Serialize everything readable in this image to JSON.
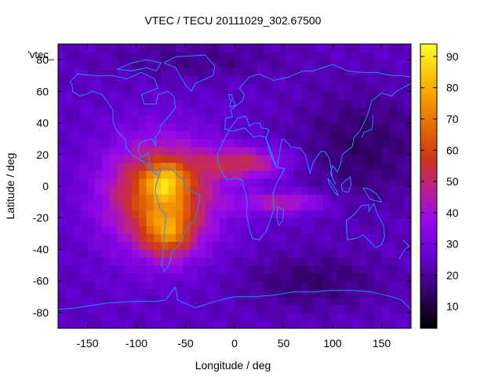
{
  "chart_data": {
    "type": "heatmap",
    "title": "VTEC / TECU 20111029_302.67500",
    "xlabel": "Longitude / deg",
    "ylabel": "Latitude / deg",
    "series_label": "'vtec_",
    "xlim": [
      -180,
      180
    ],
    "ylim": [
      -90,
      90
    ],
    "xticks": [
      -150,
      -100,
      -50,
      0,
      50,
      100,
      150
    ],
    "yticks": [
      -80,
      -60,
      -40,
      -20,
      0,
      20,
      40,
      60,
      80
    ],
    "colorbar": {
      "min": 3,
      "max": 94,
      "ticks": [
        10,
        20,
        30,
        40,
        50,
        60,
        70,
        80,
        90
      ]
    },
    "grid": {
      "lon_step": 7.5,
      "lat_step": 5
    },
    "background_level": 24,
    "features": [
      {
        "name": "south-american-anomaly",
        "lon": -75,
        "lat": -5,
        "sigma_lon": 40,
        "sigma_lat": 24,
        "amplitude": 44
      },
      {
        "name": "equatorial-crest-north",
        "lon": -70,
        "lat": 3,
        "sigma_lon": 14,
        "sigma_lat": 8,
        "amplitude": 24
      },
      {
        "name": "equatorial-crest-south",
        "lon": -68,
        "lat": -30,
        "sigma_lon": 18,
        "sigma_lat": 11,
        "amplitude": 28
      },
      {
        "name": "atlantic-band",
        "lon": 10,
        "lat": 15,
        "sigma_lon": 30,
        "sigma_lat": 7,
        "amplitude": 26
      },
      {
        "name": "indian-ocean-band",
        "lon": 50,
        "lat": -10,
        "sigma_lon": 30,
        "sigma_lat": 5,
        "amplitude": 22
      },
      {
        "name": "asian-trough",
        "lon": 130,
        "lat": 25,
        "sigma_lon": 45,
        "sigma_lat": 25,
        "amplitude": -10
      },
      {
        "name": "southern-trough",
        "lon": 80,
        "lat": -60,
        "sigma_lon": 50,
        "sigma_lat": 12,
        "amplitude": -9
      },
      {
        "name": "polar-low",
        "lon": -40,
        "lat": 80,
        "sigma_lon": 60,
        "sigma_lat": 8,
        "amplitude": -6
      }
    ],
    "coastlines": [
      {
        "name": "north-america",
        "points": [
          [
            -168,
            66
          ],
          [
            -160,
            71
          ],
          [
            -140,
            70
          ],
          [
            -125,
            70
          ],
          [
            -110,
            68
          ],
          [
            -95,
            72
          ],
          [
            -82,
            68
          ],
          [
            -78,
            62
          ],
          [
            -95,
            58
          ],
          [
            -92,
            52
          ],
          [
            -80,
            52
          ],
          [
            -78,
            58
          ],
          [
            -68,
            60
          ],
          [
            -62,
            57
          ],
          [
            -60,
            50
          ],
          [
            -66,
            45
          ],
          [
            -70,
            42
          ],
          [
            -76,
            38
          ],
          [
            -76,
            35
          ],
          [
            -81,
            31
          ],
          [
            -80,
            25
          ],
          [
            -84,
            30
          ],
          [
            -90,
            29
          ],
          [
            -97,
            27
          ],
          [
            -98,
            22
          ],
          [
            -95,
            18
          ],
          [
            -88,
            21
          ],
          [
            -87,
            16
          ],
          [
            -83,
            10
          ],
          [
            -79,
            9
          ],
          [
            -80,
            7
          ],
          [
            -85,
            10
          ],
          [
            -92,
            15
          ],
          [
            -105,
            20
          ],
          [
            -110,
            24
          ],
          [
            -112,
            30
          ],
          [
            -117,
            33
          ],
          [
            -121,
            36
          ],
          [
            -124,
            41
          ],
          [
            -124,
            48
          ],
          [
            -130,
            54
          ],
          [
            -135,
            58
          ],
          [
            -145,
            60
          ],
          [
            -152,
            58
          ],
          [
            -158,
            57
          ],
          [
            -165,
            60
          ],
          [
            -166,
            65
          ],
          [
            -168,
            66
          ]
        ]
      },
      {
        "name": "south-america",
        "points": [
          [
            -77,
            8
          ],
          [
            -73,
            12
          ],
          [
            -65,
            11
          ],
          [
            -60,
            8
          ],
          [
            -52,
            4
          ],
          [
            -50,
            0
          ],
          [
            -44,
            -3
          ],
          [
            -35,
            -6
          ],
          [
            -37,
            -12
          ],
          [
            -39,
            -18
          ],
          [
            -41,
            -22
          ],
          [
            -48,
            -26
          ],
          [
            -53,
            -34
          ],
          [
            -58,
            -38
          ],
          [
            -64,
            -42
          ],
          [
            -66,
            -48
          ],
          [
            -69,
            -52
          ],
          [
            -72,
            -54
          ],
          [
            -74,
            -50
          ],
          [
            -73,
            -42
          ],
          [
            -72,
            -32
          ],
          [
            -71,
            -25
          ],
          [
            -70,
            -18
          ],
          [
            -76,
            -14
          ],
          [
            -79,
            -8
          ],
          [
            -81,
            -3
          ],
          [
            -80,
            1
          ],
          [
            -78,
            4
          ],
          [
            -77,
            8
          ]
        ]
      },
      {
        "name": "greenland",
        "points": [
          [
            -72,
            78
          ],
          [
            -60,
            82
          ],
          [
            -30,
            83
          ],
          [
            -20,
            76
          ],
          [
            -22,
            70
          ],
          [
            -40,
            65
          ],
          [
            -44,
            60
          ],
          [
            -50,
            64
          ],
          [
            -54,
            68
          ],
          [
            -60,
            75
          ],
          [
            -72,
            78
          ]
        ]
      },
      {
        "name": "eurasia-north",
        "points": [
          [
            -10,
            36
          ],
          [
            -9,
            43
          ],
          [
            -2,
            44
          ],
          [
            -4,
            48
          ],
          [
            2,
            51
          ],
          [
            8,
            54
          ],
          [
            10,
            58
          ],
          [
            5,
            62
          ],
          [
            15,
            69
          ],
          [
            25,
            71
          ],
          [
            40,
            67
          ],
          [
            55,
            69
          ],
          [
            70,
            73
          ],
          [
            80,
            73
          ],
          [
            100,
            77
          ],
          [
            115,
            73
          ],
          [
            130,
            72
          ],
          [
            145,
            72
          ],
          [
            160,
            70
          ],
          [
            170,
            70
          ],
          [
            180,
            69
          ]
        ]
      },
      {
        "name": "eurasia-south",
        "points": [
          [
            180,
            65
          ],
          [
            165,
            60
          ],
          [
            160,
            57
          ],
          [
            150,
            59
          ],
          [
            140,
            54
          ],
          [
            135,
            44
          ],
          [
            128,
            35
          ],
          [
            122,
            31
          ],
          [
            120,
            25
          ],
          [
            110,
            20
          ],
          [
            108,
            14
          ],
          [
            105,
            9
          ],
          [
            100,
            13
          ],
          [
            98,
            8
          ],
          [
            103,
            1
          ],
          [
            100,
            5
          ],
          [
            97,
            17
          ],
          [
            92,
            22
          ],
          [
            88,
            22
          ],
          [
            80,
            15
          ],
          [
            77,
            8
          ],
          [
            72,
            20
          ],
          [
            67,
            24
          ],
          [
            57,
            25
          ],
          [
            56,
            26
          ],
          [
            50,
            30
          ],
          [
            48,
            29
          ],
          [
            44,
            13
          ],
          [
            43,
            12
          ],
          [
            38,
            18
          ],
          [
            32,
            30
          ],
          [
            35,
            36
          ],
          [
            27,
            37
          ],
          [
            26,
            40
          ],
          [
            23,
            40
          ],
          [
            20,
            40
          ],
          [
            15,
            38
          ],
          [
            12,
            44
          ],
          [
            9,
            44
          ],
          [
            3,
            43
          ],
          [
            -5,
            36
          ],
          [
            -10,
            36
          ]
        ]
      },
      {
        "name": "africa",
        "points": [
          [
            -17,
            21
          ],
          [
            -17,
            15
          ],
          [
            -14,
            10
          ],
          [
            -8,
            4
          ],
          [
            0,
            5
          ],
          [
            8,
            4
          ],
          [
            9,
            0
          ],
          [
            12,
            -6
          ],
          [
            13,
            -12
          ],
          [
            12,
            -17
          ],
          [
            15,
            -27
          ],
          [
            18,
            -33
          ],
          [
            25,
            -34
          ],
          [
            32,
            -29
          ],
          [
            35,
            -24
          ],
          [
            40,
            -15
          ],
          [
            40,
            -10
          ],
          [
            39,
            -5
          ],
          [
            43,
            2
          ],
          [
            51,
            11
          ],
          [
            43,
            12
          ],
          [
            37,
            22
          ],
          [
            32,
            31
          ],
          [
            25,
            32
          ],
          [
            20,
            31
          ],
          [
            10,
            37
          ],
          [
            0,
            35
          ],
          [
            -6,
            35
          ],
          [
            -10,
            30
          ],
          [
            -17,
            21
          ]
        ]
      },
      {
        "name": "madagascar",
        "points": [
          [
            44,
            -13
          ],
          [
            50,
            -15
          ],
          [
            49,
            -22
          ],
          [
            45,
            -25
          ],
          [
            43,
            -20
          ],
          [
            44,
            -13
          ]
        ]
      },
      {
        "name": "australia",
        "points": [
          [
            114,
            -22
          ],
          [
            122,
            -18
          ],
          [
            130,
            -12
          ],
          [
            137,
            -12
          ],
          [
            137,
            -16
          ],
          [
            142,
            -11
          ],
          [
            146,
            -18
          ],
          [
            152,
            -25
          ],
          [
            153,
            -32
          ],
          [
            150,
            -37
          ],
          [
            144,
            -39
          ],
          [
            138,
            -35
          ],
          [
            131,
            -31
          ],
          [
            124,
            -33
          ],
          [
            115,
            -34
          ],
          [
            114,
            -22
          ]
        ]
      },
      {
        "name": "new-zealand",
        "points": [
          [
            168,
            -46
          ],
          [
            172,
            -42
          ],
          [
            174,
            -40
          ],
          [
            178,
            -38
          ],
          [
            175,
            -36
          ],
          [
            172,
            -34
          ]
        ]
      },
      {
        "name": "japan",
        "points": [
          [
            130,
            31
          ],
          [
            132,
            34
          ],
          [
            136,
            35
          ],
          [
            140,
            36
          ],
          [
            141,
            40
          ],
          [
            141,
            45
          ]
        ]
      },
      {
        "name": "great-britain",
        "points": [
          [
            -5,
            50
          ],
          [
            1,
            51
          ],
          [
            0,
            53
          ],
          [
            -2,
            55
          ],
          [
            -3,
            58
          ],
          [
            -6,
            58
          ],
          [
            -5,
            55
          ],
          [
            -3,
            54
          ],
          [
            -5,
            52
          ],
          [
            -5,
            50
          ]
        ]
      },
      {
        "name": "borneo",
        "points": [
          [
            109,
            1
          ],
          [
            114,
            4
          ],
          [
            118,
            6
          ],
          [
            119,
            1
          ],
          [
            116,
            -4
          ],
          [
            110,
            -3
          ],
          [
            109,
            1
          ]
        ]
      },
      {
        "name": "sumatra",
        "points": [
          [
            95,
            5
          ],
          [
            100,
            1
          ],
          [
            104,
            -3
          ],
          [
            106,
            -6
          ],
          [
            102,
            -4
          ],
          [
            97,
            1
          ],
          [
            95,
            5
          ]
        ]
      },
      {
        "name": "new-guinea",
        "points": [
          [
            131,
            -1
          ],
          [
            138,
            -2
          ],
          [
            145,
            -5
          ],
          [
            150,
            -10
          ],
          [
            142,
            -9
          ],
          [
            138,
            -8
          ],
          [
            131,
            -1
          ]
        ]
      },
      {
        "name": "antarctica",
        "points": [
          [
            -180,
            -78
          ],
          [
            -160,
            -77
          ],
          [
            -150,
            -76
          ],
          [
            -130,
            -74
          ],
          [
            -100,
            -73
          ],
          [
            -80,
            -73
          ],
          [
            -70,
            -72
          ],
          [
            -62,
            -65
          ],
          [
            -60,
            -64
          ],
          [
            -58,
            -72
          ],
          [
            -40,
            -77
          ],
          [
            -20,
            -73
          ],
          [
            0,
            -70
          ],
          [
            20,
            -70
          ],
          [
            40,
            -69
          ],
          [
            60,
            -67
          ],
          [
            80,
            -67
          ],
          [
            100,
            -66
          ],
          [
            120,
            -66
          ],
          [
            140,
            -67
          ],
          [
            160,
            -70
          ],
          [
            170,
            -72
          ],
          [
            180,
            -78
          ]
        ]
      },
      {
        "name": "arctic-islands",
        "points": [
          [
            -120,
            74
          ],
          [
            -105,
            73
          ],
          [
            -90,
            75
          ],
          [
            -80,
            73
          ],
          [
            -75,
            78
          ],
          [
            -90,
            80
          ],
          [
            -105,
            78
          ],
          [
            -120,
            74
          ]
        ]
      }
    ]
  }
}
